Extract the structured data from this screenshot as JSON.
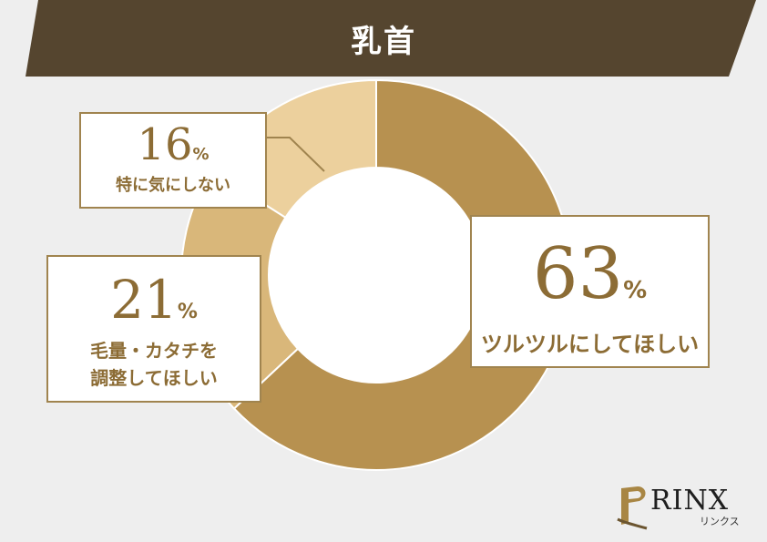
{
  "title": "乳首",
  "colors": {
    "banner": "#55452f",
    "slice_63": "#b79150",
    "slice_21": "#d9b77a",
    "slice_16": "#ecd09d",
    "border": "#a0844f",
    "text": "#8c6c35"
  },
  "chart_data": {
    "type": "pie",
    "donut": true,
    "slices": [
      {
        "label": "ツルツルにしてほしい",
        "value": 63
      },
      {
        "label": "毛量・カタチを調整してほしい",
        "value": 21
      },
      {
        "label": "特に気にしない",
        "value": 16
      }
    ],
    "unit": "%"
  },
  "labels": {
    "s63": {
      "value": "63",
      "unit": "%",
      "text": "ツルツルにしてほしい"
    },
    "s21": {
      "value": "21",
      "unit": "%",
      "line1": "毛量・カタチを",
      "line2": "調整してほしい"
    },
    "s16": {
      "value": "16",
      "unit": "%",
      "text": "特に気にしない"
    }
  },
  "logo": {
    "text": "RINX",
    "sub": "リンクス",
    "mark_icon": "p-monogram-icon"
  }
}
